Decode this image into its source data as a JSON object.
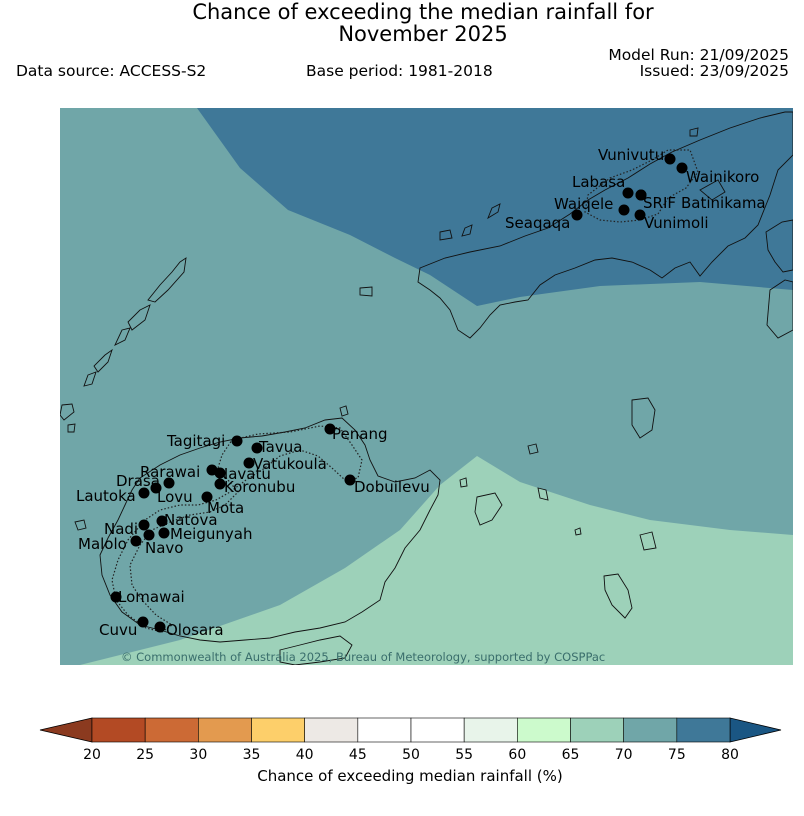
{
  "title_line1": "Chance of exceeding the median rainfall for",
  "title_line2": "November 2025",
  "data_source": "Data source: ACCESS-S2",
  "base_period": "Base period: 1981-2018",
  "model_run": "Model Run: 21/09/2025",
  "issued": "Issued: 23/09/2025",
  "copyright": "© Commonwealth of Australia 2025, Bureau of Meteorology, supported by COSPPac",
  "colorbar": {
    "label": "Chance of exceeding median rainfall (%)",
    "ticks": [
      "20",
      "25",
      "30",
      "35",
      "40",
      "45",
      "50",
      "55",
      "60",
      "65",
      "70",
      "75",
      "80"
    ],
    "colors": [
      "#b34a24",
      "#cc6a35",
      "#e39a4f",
      "#fdcf6a",
      "#ede9e5",
      "#ffffff",
      "#ffffff",
      "#e8f4ea",
      "#ccfacc",
      "#9dd1b9",
      "#70a6a8",
      "#3f7898"
    ],
    "under_color": "#8b3a1f",
    "over_color": "#1a5683"
  },
  "map_colors": {
    "cat_65_70": "#9dd1b9",
    "cat_70_75": "#70a6a8",
    "cat_75_80": "#3f7898"
  },
  "stations": [
    {
      "name": "Vunivutu"
    },
    {
      "name": "Wainikoro"
    },
    {
      "name": "Labasa"
    },
    {
      "name": "SRIF"
    },
    {
      "name": "Batinikama"
    },
    {
      "name": "Waiqele"
    },
    {
      "name": "Vunimoli"
    },
    {
      "name": "Seaqaqa"
    },
    {
      "name": "Penang"
    },
    {
      "name": "Tagitagi"
    },
    {
      "name": "Tavua"
    },
    {
      "name": "Vatukoula"
    },
    {
      "name": "Rarawai"
    },
    {
      "name": "Navatu"
    },
    {
      "name": "Drasa"
    },
    {
      "name": "Koronubu"
    },
    {
      "name": "Lautoka"
    },
    {
      "name": "Lovu"
    },
    {
      "name": "Mota"
    },
    {
      "name": "Dobuilevu"
    },
    {
      "name": "Natova"
    },
    {
      "name": "Nadi"
    },
    {
      "name": "Meigunyah"
    },
    {
      "name": "Malolo"
    },
    {
      "name": "Navo"
    },
    {
      "name": "Lomawai"
    },
    {
      "name": "Cuvu"
    },
    {
      "name": "Olosara"
    }
  ]
}
